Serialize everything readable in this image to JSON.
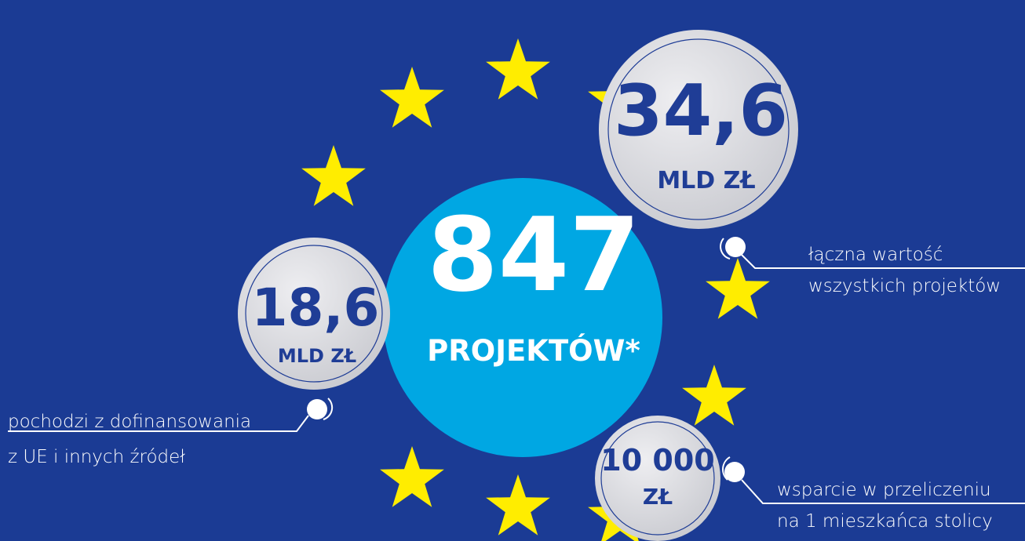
{
  "main": {
    "value": "847",
    "label": "PROJEKTÓW*"
  },
  "bubbles": [
    {
      "value": "34,6",
      "unit": "MLD ZŁ",
      "caption": [
        "łączna wartość",
        "wszystkich projektów"
      ]
    },
    {
      "value": "18,6",
      "unit": "MLD ZŁ",
      "caption": [
        "pochodzi z dofinansowania",
        "z UE i innych źródeł"
      ]
    },
    {
      "value": "10 000",
      "unit": "ZŁ",
      "caption": [
        "wsparcie w przeliczeniu",
        "na 1 mieszkańca stolicy"
      ]
    }
  ]
}
